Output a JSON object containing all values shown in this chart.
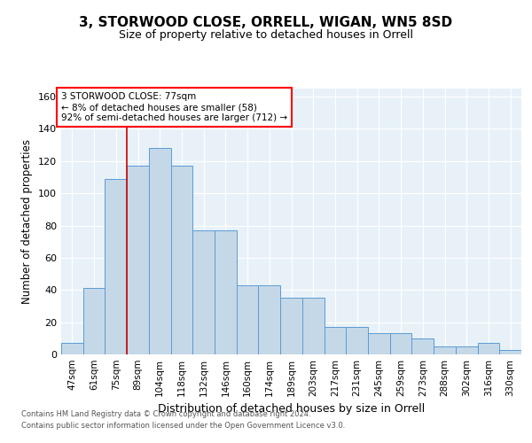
{
  "title": "3, STORWOOD CLOSE, ORRELL, WIGAN, WN5 8SD",
  "subtitle": "Size of property relative to detached houses in Orrell",
  "xlabel": "Distribution of detached houses by size in Orrell",
  "ylabel": "Number of detached properties",
  "categories": [
    "47sqm",
    "61sqm",
    "75sqm",
    "89sqm",
    "104sqm",
    "118sqm",
    "132sqm",
    "146sqm",
    "160sqm",
    "174sqm",
    "189sqm",
    "203sqm",
    "217sqm",
    "231sqm",
    "245sqm",
    "259sqm",
    "273sqm",
    "288sqm",
    "302sqm",
    "316sqm",
    "330sqm"
  ],
  "bar_values": [
    7,
    41,
    109,
    117,
    128,
    117,
    77,
    77,
    43,
    43,
    35,
    35,
    17,
    17,
    13,
    13,
    10,
    5,
    5,
    7,
    3
  ],
  "bar_color": "#c5d8e8",
  "bar_edge_color": "#5b9bd5",
  "vline_color": "#cc0000",
  "annotation_line1": "3 STORWOOD CLOSE: 77sqm",
  "annotation_line2": "← 8% of detached houses are smaller (58)",
  "annotation_line3": "92% of semi-detached houses are larger (712) →",
  "ylim": [
    0,
    165
  ],
  "yticks": [
    0,
    20,
    40,
    60,
    80,
    100,
    120,
    140,
    160
  ],
  "background_color": "#e8f1f8",
  "footer1": "Contains HM Land Registry data © Crown copyright and database right 2024.",
  "footer2": "Contains public sector information licensed under the Open Government Licence v3.0.",
  "title_fontsize": 11,
  "subtitle_fontsize": 9,
  "xlabel_fontsize": 9,
  "ylabel_fontsize": 8.5
}
